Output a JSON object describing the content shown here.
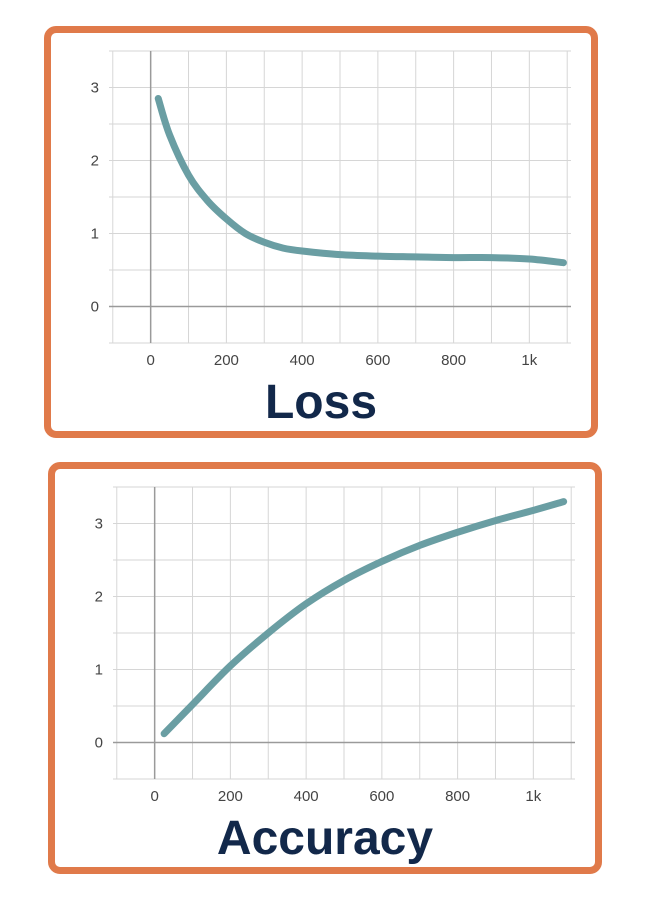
{
  "colors": {
    "border": "#e07a4a",
    "line": "#6a9ea3",
    "title": "#12284a",
    "grid": "#d6d6d6",
    "axis": "#9a9a9a"
  },
  "chart_data": [
    {
      "type": "line",
      "title": "Loss",
      "xlim": [
        -110,
        1110
      ],
      "ylim": [
        -0.5,
        3.5
      ],
      "x_ticks": [
        0,
        200,
        400,
        600,
        800,
        1000
      ],
      "x_tick_labels": [
        "0",
        "200",
        "400",
        "600",
        "800",
        "1k"
      ],
      "y_ticks": [
        0,
        1,
        2,
        3
      ],
      "y_tick_labels": [
        "0",
        "1",
        "2",
        "3"
      ],
      "grid": true,
      "series": [
        {
          "x": [
            20,
            50,
            100,
            150,
            200,
            250,
            300,
            350,
            400,
            500,
            600,
            700,
            800,
            900,
            1000,
            1090
          ],
          "y": [
            2.85,
            2.35,
            1.8,
            1.45,
            1.2,
            1.0,
            0.88,
            0.8,
            0.76,
            0.71,
            0.69,
            0.68,
            0.67,
            0.67,
            0.65,
            0.6
          ]
        }
      ]
    },
    {
      "type": "line",
      "title": "Accuracy",
      "xlim": [
        -110,
        1110
      ],
      "ylim": [
        -0.5,
        3.5
      ],
      "x_ticks": [
        0,
        200,
        400,
        600,
        800,
        1000
      ],
      "x_tick_labels": [
        "0",
        "200",
        "400",
        "600",
        "800",
        "1k"
      ],
      "y_ticks": [
        0,
        1,
        2,
        3
      ],
      "y_tick_labels": [
        "0",
        "1",
        "2",
        "3"
      ],
      "grid": true,
      "series": [
        {
          "x": [
            25,
            100,
            200,
            300,
            400,
            500,
            600,
            700,
            800,
            900,
            1000,
            1080
          ],
          "y": [
            0.12,
            0.52,
            1.05,
            1.5,
            1.9,
            2.22,
            2.48,
            2.7,
            2.88,
            3.04,
            3.18,
            3.3
          ]
        }
      ]
    }
  ]
}
